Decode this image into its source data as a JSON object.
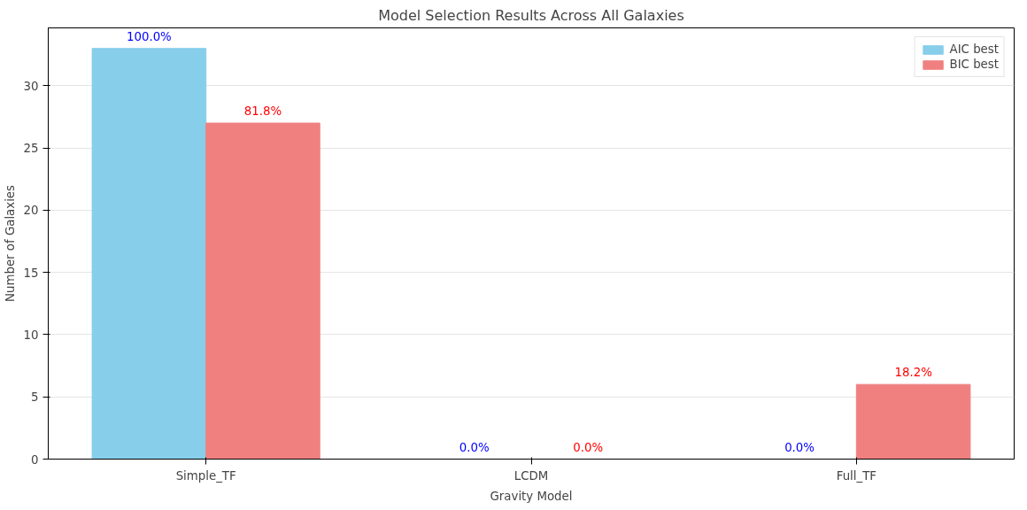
{
  "chart_data": {
    "type": "bar",
    "title": "Model Selection Results Across All Galaxies",
    "xlabel": "Gravity Model",
    "ylabel": "Number of Galaxies",
    "categories": [
      "Simple_TF",
      "LCDM",
      "Full_TF"
    ],
    "series": [
      {
        "name": "AIC best",
        "color": "#87ceeb",
        "values": [
          33,
          0,
          0
        ]
      },
      {
        "name": "BIC best",
        "color": "#f08080",
        "values": [
          27,
          0,
          6
        ]
      }
    ],
    "annotations": [
      "100.0%",
      "0.0%",
      "0.0%",
      "81.8%",
      "0.0%",
      "18.2%"
    ],
    "ylim": [
      0,
      34.65
    ],
    "yticks": [
      0,
      5,
      10,
      15,
      20,
      25,
      30
    ],
    "grid": "y",
    "legend": "top right"
  }
}
